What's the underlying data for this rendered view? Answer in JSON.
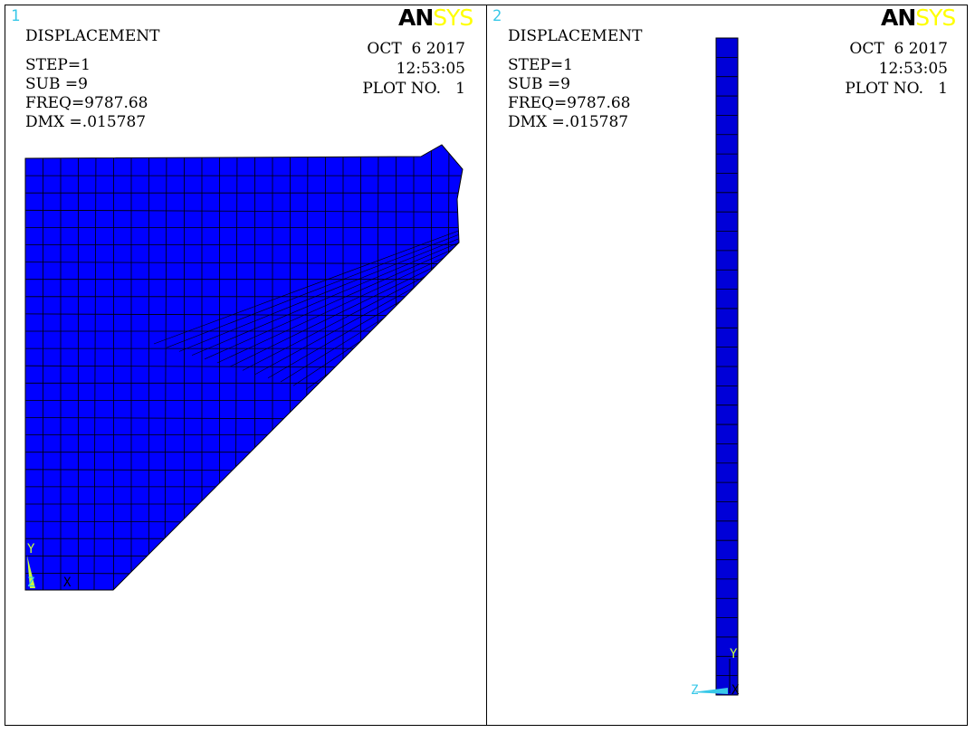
{
  "logo": {
    "an": "AN",
    "sys": "SYS"
  },
  "colors": {
    "mesh_fill": "#0000ff",
    "column_fill": "#0000d8",
    "axis_y": "#c8ff40",
    "axis_z": "#38c8e8",
    "logo_accent": "#ffff00"
  },
  "window1": {
    "number": "1",
    "result": "DISPLACEMENT",
    "step": "STEP=1",
    "sub": "SUB =9",
    "freq": "FREQ=9787.68",
    "dmx": "DMX =.015787",
    "date": "OCT  6 2017",
    "time": "12:53:05",
    "plot": "PLOT NO.   1",
    "axis_y": "Y",
    "axis_z": "Z",
    "axis_x": "X"
  },
  "window2": {
    "number": "2",
    "result": "DISPLACEMENT",
    "step": "STEP=1",
    "sub": "SUB =9",
    "freq": "FREQ=9787.68",
    "dmx": "DMX =.015787",
    "date": "OCT  6 2017",
    "time": "12:53:05",
    "plot": "PLOT NO.   1",
    "axis_y": "Y",
    "axis_z": "Z",
    "axis_x": "X"
  }
}
